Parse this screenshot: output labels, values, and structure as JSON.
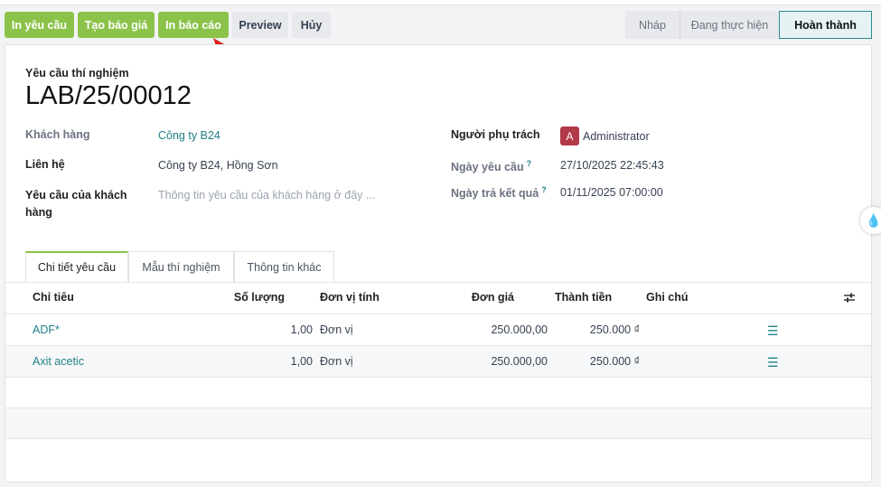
{
  "toolbar": {
    "buttons": [
      "In yêu cầu",
      "Tạo báo giá",
      "In báo cáo",
      "Preview",
      "Hủy"
    ]
  },
  "status": {
    "stages": [
      "Nháp",
      "Đang thực hiện",
      "Hoàn thành"
    ],
    "active": "Hoàn thành"
  },
  "form": {
    "subtitle": "Yêu cầu thí nghiệm",
    "title": "LAB/25/00012",
    "customer_label": "Khách hàng",
    "customer": "Công ty B24",
    "contact_label": "Liên hệ",
    "contact": "Công ty B24, Hồng Sơn",
    "request_label": "Yêu cầu của khách hàng",
    "request_placeholder": "Thông tin yêu cầu của khách hàng ở đây ...",
    "responsible_label": "Người phụ trách",
    "responsible_initial": "A",
    "responsible": "Administrator",
    "request_date_label": "Ngày yêu cầu",
    "request_date": "27/10/2025 22:45:43",
    "result_date_label": "Ngày trả kết quả",
    "result_date": "01/11/2025 07:00:00",
    "help_mark": "?"
  },
  "tabs": [
    "Chi tiết yêu cầu",
    "Mẫu thí nghiệm",
    "Thông tin khác"
  ],
  "table": {
    "headers": [
      "Chỉ tiêu",
      "Số lượng",
      "Đơn vị tính",
      "Đơn giá",
      "Thành tiền",
      "Ghi chú"
    ],
    "rows": [
      {
        "name": "ADF*",
        "qty": "1,00",
        "uom": "Đơn vị",
        "price": "250.000,00",
        "total": "250.000 ₫"
      },
      {
        "name": "Axit acetic",
        "qty": "1,00",
        "uom": "Đơn vị",
        "price": "250.000,00",
        "total": "250.000 ₫"
      }
    ]
  },
  "colors": {
    "accent": "#8bc34a",
    "link": "#1f7f86",
    "arrow": "#e0201c"
  }
}
